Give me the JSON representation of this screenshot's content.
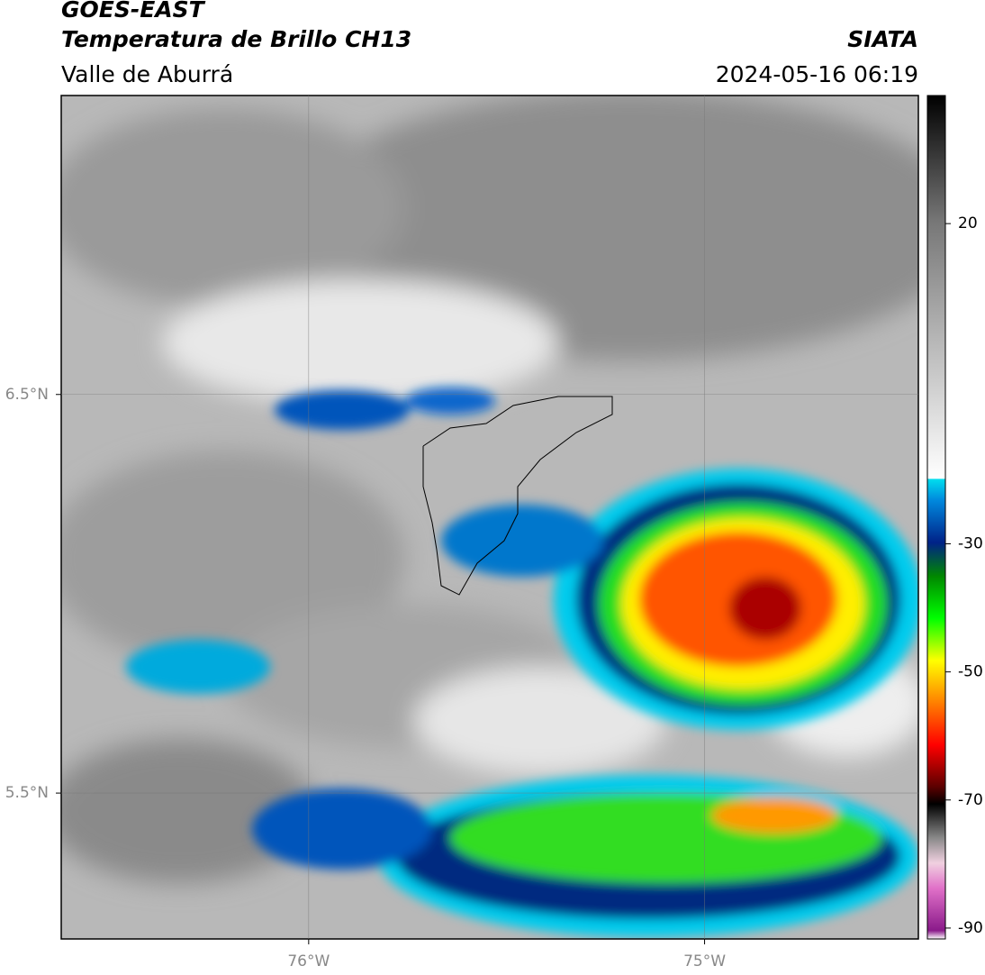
{
  "header": {
    "source": "GOES-EAST",
    "product": "Temperatura de Brillo CH13",
    "region": "Valle de Aburrá",
    "agency": "SIATA",
    "timestamp": "2024-05-16 06:19"
  },
  "map": {
    "xlim": [
      -76.625,
      -74.46
    ],
    "ylim": [
      5.134,
      7.25
    ],
    "xticks": [
      {
        "value": -76,
        "label": "76°W"
      },
      {
        "value": -75,
        "label": "75°W"
      }
    ],
    "yticks": [
      {
        "value": 6.5,
        "label": "6.5°N"
      },
      {
        "value": 5.5,
        "label": "5.5°N"
      }
    ],
    "grid": true
  },
  "colorbar": {
    "range": [
      -91.7,
      40
    ],
    "ticks": [
      20,
      -30,
      -50,
      -70,
      -90
    ]
  }
}
